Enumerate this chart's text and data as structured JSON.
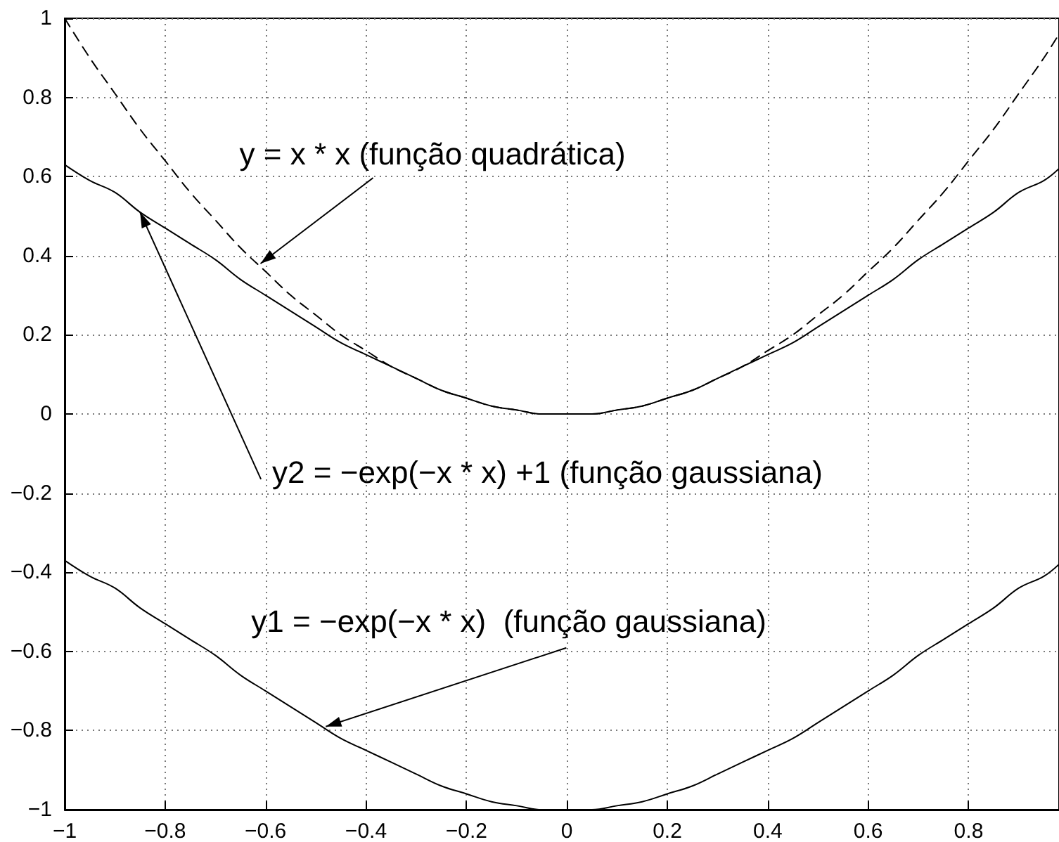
{
  "chart_data": {
    "type": "line",
    "x": [
      -1,
      -0.95,
      -0.9,
      -0.85,
      -0.8,
      -0.75,
      -0.7,
      -0.65,
      -0.6,
      -0.55,
      -0.5,
      -0.45,
      -0.4,
      -0.35,
      -0.3,
      -0.25,
      -0.2,
      -0.15,
      -0.1,
      -0.05,
      0,
      0.05,
      0.1,
      0.15,
      0.2,
      0.25,
      0.3,
      0.35,
      0.4,
      0.45,
      0.5,
      0.55,
      0.6,
      0.65,
      0.7,
      0.75,
      0.8,
      0.85,
      0.9,
      0.95,
      0.98
    ],
    "xlim": [
      -1,
      0.98
    ],
    "ylim": [
      -1,
      1
    ],
    "xticks": [
      -1,
      -0.8,
      -0.6,
      -0.4,
      -0.2,
      0,
      0.2,
      0.4,
      0.6,
      0.8
    ],
    "yticks": [
      -1,
      -0.8,
      -0.6,
      -0.4,
      -0.2,
      0,
      0.2,
      0.4,
      0.6,
      0.8,
      1
    ],
    "grid": true,
    "marker": "none",
    "series": [
      {
        "color": "#000000",
        "line_style": "dashed",
        "values": [
          1,
          0.9,
          0.81,
          0.72,
          0.64,
          0.56,
          0.49,
          0.42,
          0.36,
          0.3,
          0.25,
          0.2,
          0.16,
          0.12,
          0.09,
          0.06,
          0.04,
          0.02,
          0.01,
          0.0,
          0,
          0.0,
          0.01,
          0.02,
          0.04,
          0.06,
          0.09,
          0.12,
          0.16,
          0.2,
          0.25,
          0.3,
          0.36,
          0.42,
          0.49,
          0.56,
          0.64,
          0.72,
          0.81,
          0.9,
          0.96
        ]
      },
      {
        "color": "#000000",
        "line_style": "solid",
        "values": [
          0.63,
          0.59,
          0.56,
          0.51,
          0.47,
          0.43,
          0.39,
          0.34,
          0.3,
          0.26,
          0.22,
          0.18,
          0.15,
          0.12,
          0.09,
          0.06,
          0.04,
          0.02,
          0.01,
          0.0,
          0,
          0.0,
          0.01,
          0.02,
          0.04,
          0.06,
          0.09,
          0.12,
          0.15,
          0.18,
          0.22,
          0.26,
          0.3,
          0.34,
          0.39,
          0.43,
          0.47,
          0.51,
          0.56,
          0.59,
          0.62
        ]
      },
      {
        "color": "#000000",
        "line_style": "solid",
        "values": [
          -0.37,
          -0.41,
          -0.44,
          -0.49,
          -0.53,
          -0.57,
          -0.61,
          -0.66,
          -0.7,
          -0.74,
          -0.78,
          -0.82,
          -0.85,
          -0.88,
          -0.91,
          -0.94,
          -0.96,
          -0.98,
          -0.99,
          -1.0,
          -1,
          -1.0,
          -0.99,
          -0.98,
          -0.96,
          -0.94,
          -0.91,
          -0.88,
          -0.85,
          -0.82,
          -0.78,
          -0.74,
          -0.7,
          -0.66,
          -0.61,
          -0.57,
          -0.53,
          -0.49,
          -0.44,
          -0.41,
          -0.38
        ]
      }
    ],
    "annotations": [
      {
        "text": "y = x * x (função quadrática)",
        "x": -0.61,
        "y": 0.38
      },
      {
        "text": "y2 = −exp(−x * x) +1 (função gaussiana)",
        "x": -0.85,
        "y": 0.51
      },
      {
        "text": "y1 = −exp(−x * x)  (função gaussiana)",
        "x": -0.48,
        "y": -0.79
      }
    ]
  }
}
